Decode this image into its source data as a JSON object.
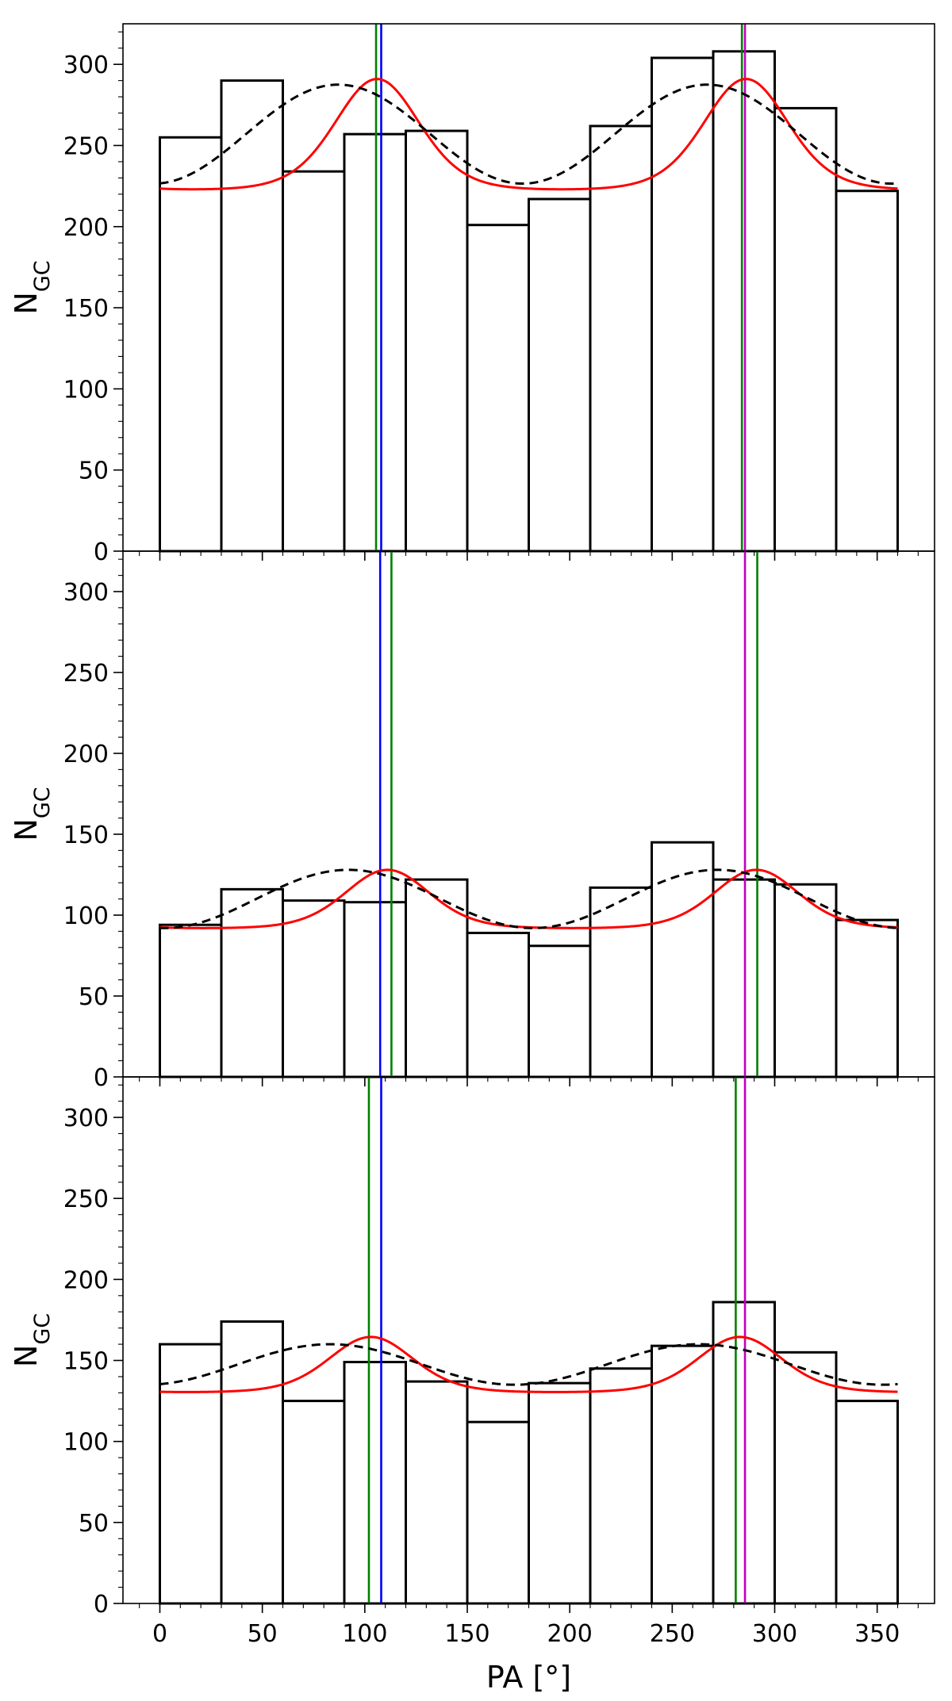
{
  "chart_data": [
    {
      "type": "bar",
      "panel": "top",
      "xlabel": "",
      "ylabel": "N",
      "ylabel_sub": "GC",
      "xlim": [
        -18,
        378
      ],
      "ylim": [
        0,
        325
      ],
      "bins": [
        [
          0,
          30
        ],
        [
          30,
          60
        ],
        [
          60,
          90
        ],
        [
          90,
          120
        ],
        [
          120,
          150
        ],
        [
          150,
          180
        ],
        [
          180,
          210
        ],
        [
          210,
          240
        ],
        [
          240,
          270
        ],
        [
          270,
          300
        ],
        [
          300,
          330
        ],
        [
          330,
          360
        ]
      ],
      "values": [
        255,
        290,
        234,
        257,
        259,
        201,
        217,
        262,
        304,
        308,
        273,
        222
      ],
      "red_fit": {
        "baseline": 257.0,
        "amplitude": 34.0,
        "peak1": 106,
        "peak2": 286
      },
      "black_fit": {
        "mean": 257.0,
        "amplitude": 30.5,
        "peak": 87
      },
      "vlines": [
        {
          "x": 105.5,
          "color": "#008000"
        },
        {
          "x": 108,
          "color": "#0000ff"
        },
        {
          "x": 284,
          "color": "#008000"
        },
        {
          "x": 285.5,
          "color": "#bf00bf"
        }
      ]
    },
    {
      "type": "bar",
      "panel": "middle",
      "xlabel": "",
      "ylabel": "N",
      "ylabel_sub": "GC",
      "xlim": [
        -18,
        378
      ],
      "ylim": [
        0,
        325
      ],
      "bins": [
        [
          0,
          30
        ],
        [
          30,
          60
        ],
        [
          60,
          90
        ],
        [
          90,
          120
        ],
        [
          120,
          150
        ],
        [
          150,
          180
        ],
        [
          180,
          210
        ],
        [
          210,
          240
        ],
        [
          240,
          270
        ],
        [
          270,
          300
        ],
        [
          300,
          330
        ],
        [
          330,
          360
        ]
      ],
      "values": [
        94,
        116,
        109,
        108,
        122,
        89,
        81,
        117,
        145,
        122,
        119,
        97
      ],
      "red_fit": {
        "baseline": 110.0,
        "amplitude": 18.0,
        "peak1": 111,
        "peak2": 291
      },
      "black_fit": {
        "mean": 110.0,
        "amplitude": 18.0,
        "peak": 92
      },
      "vlines": [
        {
          "x": 107.5,
          "color": "#0000ff"
        },
        {
          "x": 113,
          "color": "#008000"
        },
        {
          "x": 285.5,
          "color": "#bf00bf"
        },
        {
          "x": 291.5,
          "color": "#008000"
        }
      ]
    },
    {
      "type": "bar",
      "panel": "bottom",
      "xlabel": "PA [°]",
      "ylabel": "N",
      "ylabel_sub": "GC",
      "xlim": [
        -18,
        378
      ],
      "ylim": [
        0,
        325
      ],
      "xticks": [
        0,
        50,
        100,
        150,
        200,
        250,
        300,
        350
      ],
      "yticks": [
        0,
        50,
        100,
        150,
        200,
        250,
        300
      ],
      "bins": [
        [
          0,
          30
        ],
        [
          30,
          60
        ],
        [
          60,
          90
        ],
        [
          90,
          120
        ],
        [
          120,
          150
        ],
        [
          150,
          180
        ],
        [
          180,
          210
        ],
        [
          210,
          240
        ],
        [
          240,
          270
        ],
        [
          270,
          300
        ],
        [
          300,
          330
        ],
        [
          330,
          360
        ]
      ],
      "values": [
        160,
        174,
        125,
        149,
        137,
        112,
        136,
        145,
        159,
        186,
        155,
        125
      ],
      "red_fit": {
        "baseline": 147.5,
        "amplitude": 17.0,
        "peak1": 103,
        "peak2": 283
      },
      "black_fit": {
        "mean": 147.5,
        "amplitude": 12.5,
        "peak": 83
      },
      "vlines": [
        {
          "x": 102,
          "color": "#008000"
        },
        {
          "x": 108,
          "color": "#0000ff"
        },
        {
          "x": 281,
          "color": "#008000"
        },
        {
          "x": 285.5,
          "color": "#bf00bf"
        }
      ]
    }
  ]
}
